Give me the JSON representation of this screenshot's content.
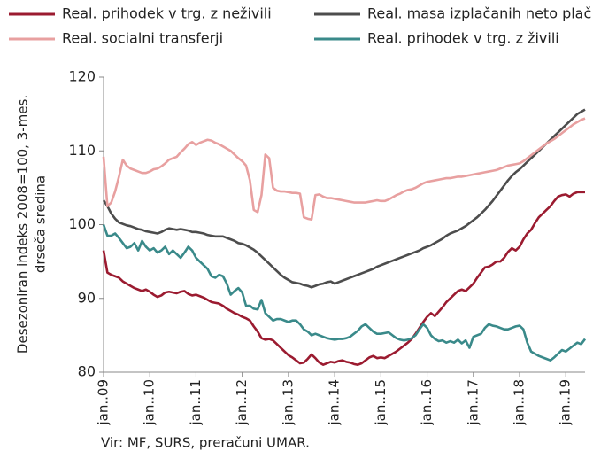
{
  "chart_data": {
    "type": "line",
    "ylabel": [
      "Desezoniran indeks 2008=100, 3-mes.",
      "drseča sredina"
    ],
    "source": "Vir: MF, SURS, preračuni UMAR.",
    "ylim": [
      80,
      120
    ],
    "yticks": [
      80,
      90,
      100,
      110,
      120
    ],
    "legend": "top",
    "categories": [
      "jan..09",
      null,
      null,
      null,
      null,
      null,
      null,
      null,
      null,
      null,
      null,
      null,
      "jan..10",
      null,
      null,
      null,
      null,
      null,
      null,
      null,
      null,
      null,
      null,
      null,
      "jan..11",
      null,
      null,
      null,
      null,
      null,
      null,
      null,
      null,
      null,
      null,
      null,
      "jan..12",
      null,
      null,
      null,
      null,
      null,
      null,
      null,
      null,
      null,
      null,
      null,
      "jan..13",
      null,
      null,
      null,
      null,
      null,
      null,
      null,
      null,
      null,
      null,
      null,
      "jan..14",
      null,
      null,
      null,
      null,
      null,
      null,
      null,
      null,
      null,
      null,
      null,
      "jan..15",
      null,
      null,
      null,
      null,
      null,
      null,
      null,
      null,
      null,
      null,
      null,
      "jan..16",
      null,
      null,
      null,
      null,
      null,
      null,
      null,
      null,
      null,
      null,
      null,
      "jan..17",
      null,
      null,
      null,
      null,
      null,
      null,
      null,
      null,
      null,
      null,
      null,
      "jan..18",
      null,
      null,
      null,
      null,
      null,
      null,
      null,
      null,
      null,
      null,
      null,
      "jan..19",
      null,
      null,
      null,
      null,
      null
    ],
    "series": [
      {
        "name": "Real. prihodek v trg. z neživili",
        "color": "#9b1b30",
        "values": [
          96.5,
          93.5,
          93.2,
          93.0,
          92.8,
          92.3,
          92.0,
          91.7,
          91.4,
          91.2,
          91.0,
          91.2,
          90.9,
          90.5,
          90.2,
          90.4,
          90.8,
          90.9,
          90.8,
          90.7,
          90.9,
          91.0,
          90.6,
          90.4,
          90.5,
          90.3,
          90.1,
          89.8,
          89.5,
          89.4,
          89.3,
          89.0,
          88.6,
          88.3,
          88.0,
          87.8,
          87.5,
          87.3,
          87.0,
          86.2,
          85.5,
          84.6,
          84.4,
          84.5,
          84.3,
          83.8,
          83.3,
          82.8,
          82.3,
          82.0,
          81.6,
          81.2,
          81.3,
          81.8,
          82.4,
          81.9,
          81.3,
          81.0,
          81.2,
          81.4,
          81.3,
          81.5,
          81.6,
          81.4,
          81.3,
          81.1,
          81.0,
          81.2,
          81.6,
          82.0,
          82.2,
          81.9,
          82.0,
          81.9,
          82.2,
          82.5,
          82.8,
          83.2,
          83.6,
          84.0,
          84.5,
          85.2,
          86.0,
          86.8,
          87.5,
          88.0,
          87.6,
          88.2,
          88.8,
          89.5,
          90.0,
          90.5,
          91.0,
          91.2,
          91.0,
          91.5,
          92.0,
          92.8,
          93.5,
          94.2,
          94.3,
          94.6,
          95.0,
          95.0,
          95.5,
          96.3,
          96.8,
          96.5,
          97.0,
          98.0,
          98.8,
          99.3,
          100.2,
          101.0,
          101.5,
          102.0,
          102.5,
          103.2,
          103.8,
          104.0,
          104.1,
          103.8,
          104.2,
          104.4,
          104.4,
          104.4
        ]
      },
      {
        "name": "Real. masa izplačanih neto plač",
        "color": "#4d4d4d",
        "values": [
          103.3,
          102.5,
          101.5,
          100.8,
          100.3,
          100.1,
          99.9,
          99.8,
          99.6,
          99.4,
          99.3,
          99.1,
          99.0,
          98.9,
          98.8,
          99.0,
          99.3,
          99.5,
          99.4,
          99.3,
          99.4,
          99.3,
          99.2,
          99.0,
          99.0,
          98.9,
          98.8,
          98.6,
          98.5,
          98.4,
          98.4,
          98.4,
          98.2,
          98.0,
          97.8,
          97.5,
          97.4,
          97.2,
          96.9,
          96.6,
          96.2,
          95.7,
          95.2,
          94.7,
          94.2,
          93.7,
          93.2,
          92.8,
          92.5,
          92.2,
          92.1,
          92.0,
          91.8,
          91.7,
          91.5,
          91.7,
          91.9,
          92.0,
          92.2,
          92.3,
          92.0,
          92.2,
          92.4,
          92.6,
          92.8,
          93.0,
          93.2,
          93.4,
          93.6,
          93.8,
          94.0,
          94.3,
          94.5,
          94.7,
          94.9,
          95.1,
          95.3,
          95.5,
          95.7,
          95.9,
          96.1,
          96.3,
          96.5,
          96.8,
          97.0,
          97.2,
          97.5,
          97.8,
          98.1,
          98.5,
          98.8,
          99.0,
          99.2,
          99.5,
          99.8,
          100.2,
          100.6,
          101.0,
          101.5,
          102.0,
          102.6,
          103.2,
          103.9,
          104.6,
          105.3,
          106.0,
          106.6,
          107.1,
          107.5,
          108.0,
          108.5,
          109.0,
          109.5,
          110.0,
          110.5,
          111.0,
          111.5,
          112.0,
          112.5,
          113.0,
          113.5,
          114.0,
          114.5,
          115.0,
          115.3,
          115.6
        ]
      },
      {
        "name": "Real. socialni transferji",
        "color": "#e8a0a0",
        "values": [
          109.2,
          102.5,
          103.0,
          104.5,
          106.5,
          108.8,
          108.0,
          107.6,
          107.4,
          107.2,
          107.0,
          107.0,
          107.2,
          107.5,
          107.6,
          107.9,
          108.3,
          108.8,
          109.0,
          109.2,
          109.8,
          110.3,
          110.9,
          111.2,
          110.8,
          111.1,
          111.3,
          111.5,
          111.4,
          111.1,
          110.9,
          110.6,
          110.3,
          110.0,
          109.5,
          109.0,
          108.6,
          108.0,
          106.0,
          102.0,
          101.7,
          104.0,
          109.5,
          109.0,
          105.0,
          104.6,
          104.5,
          104.5,
          104.4,
          104.3,
          104.3,
          104.2,
          101.0,
          100.8,
          100.7,
          104.0,
          104.1,
          103.8,
          103.6,
          103.6,
          103.5,
          103.4,
          103.3,
          103.2,
          103.1,
          103.0,
          103.0,
          103.0,
          103.0,
          103.1,
          103.2,
          103.3,
          103.2,
          103.2,
          103.4,
          103.7,
          104.0,
          104.2,
          104.5,
          104.7,
          104.8,
          105.0,
          105.3,
          105.6,
          105.8,
          105.9,
          106.0,
          106.1,
          106.2,
          106.3,
          106.3,
          106.4,
          106.5,
          106.5,
          106.6,
          106.7,
          106.8,
          106.9,
          107.0,
          107.1,
          107.2,
          107.3,
          107.4,
          107.6,
          107.8,
          108.0,
          108.1,
          108.2,
          108.3,
          108.6,
          109.0,
          109.4,
          109.8,
          110.2,
          110.6,
          111.0,
          111.3,
          111.6,
          112.0,
          112.4,
          112.8,
          113.2,
          113.6,
          113.9,
          114.2,
          114.4
        ]
      },
      {
        "name": "Real. prihodek v trg. z živili",
        "color": "#3a8a8a",
        "values": [
          100.0,
          98.5,
          98.5,
          98.8,
          98.2,
          97.5,
          96.8,
          97.0,
          97.5,
          96.5,
          97.8,
          97.0,
          96.5,
          96.8,
          96.2,
          96.5,
          97.0,
          96.0,
          96.5,
          96.0,
          95.5,
          96.2,
          97.0,
          96.5,
          95.5,
          95.0,
          94.5,
          94.0,
          93.0,
          92.8,
          93.2,
          93.0,
          92.0,
          90.5,
          91.0,
          91.4,
          90.8,
          89.0,
          89.0,
          88.6,
          88.5,
          89.8,
          88.0,
          87.5,
          87.0,
          87.2,
          87.2,
          87.0,
          86.8,
          87.0,
          87.0,
          86.5,
          85.8,
          85.5,
          85.0,
          85.2,
          85.0,
          84.8,
          84.6,
          84.5,
          84.4,
          84.5,
          84.5,
          84.6,
          84.8,
          85.2,
          85.6,
          86.2,
          86.5,
          86.0,
          85.5,
          85.2,
          85.2,
          85.3,
          85.4,
          85.0,
          84.6,
          84.4,
          84.3,
          84.4,
          84.6,
          85.0,
          85.8,
          86.5,
          86.0,
          85.0,
          84.5,
          84.2,
          84.3,
          84.0,
          84.2,
          84.0,
          84.4,
          83.9,
          84.3,
          83.3,
          84.8,
          85.0,
          85.2,
          86.0,
          86.5,
          86.3,
          86.2,
          86.0,
          85.8,
          85.8,
          86.0,
          86.2,
          86.3,
          85.8,
          84.0,
          82.8,
          82.5,
          82.2,
          82.0,
          81.8,
          81.6,
          82.0,
          82.5,
          83.0,
          82.8,
          83.2,
          83.6,
          84.0,
          83.8,
          84.5
        ]
      }
    ]
  }
}
